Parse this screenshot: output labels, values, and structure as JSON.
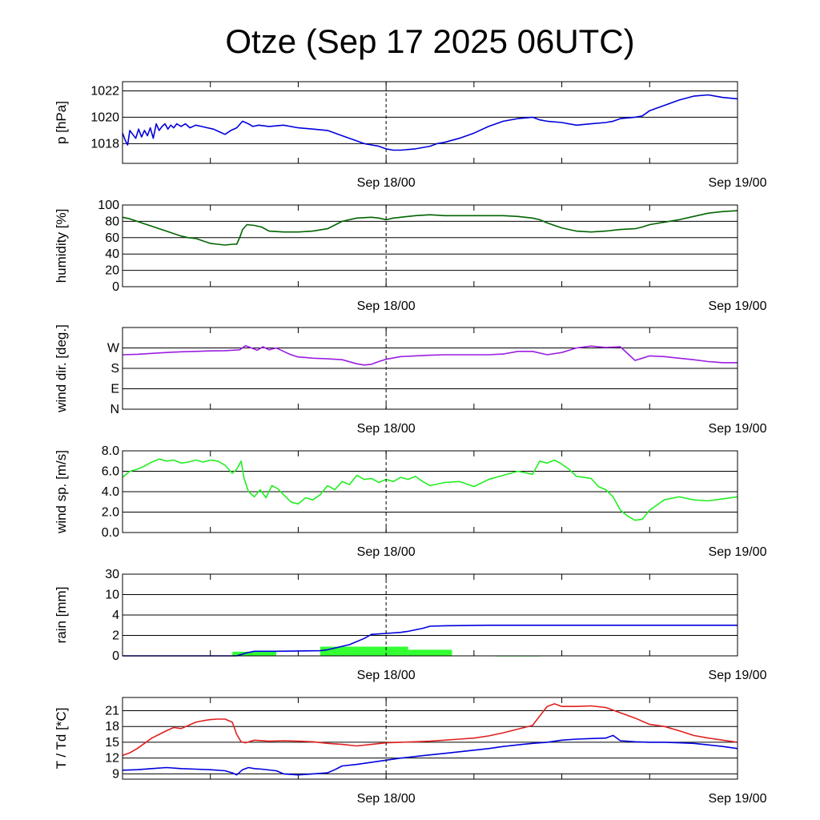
{
  "title": "Otze (Sep 17 2025 06UTC)",
  "colors": {
    "pressure": "#0000dd",
    "humidity": "#006400",
    "wind_dir": "#9a1ee0",
    "wind_dir_alt": "#6060ff",
    "wind_speed": "#22ee22",
    "rain_bar": "#33ff33",
    "rain_acc": "#0000dd",
    "temperature": "#e02020",
    "dewpoint": "#0000dd",
    "grid": "#000000",
    "now_line": "#000000"
  },
  "chart_data": [
    {
      "type": "line",
      "id": "pressure",
      "ylabel": "p [hPa]",
      "x_range_h": [
        0,
        42
      ],
      "x_tick_labels": [
        {
          "h": 18,
          "label": "Sep 18/00"
        },
        {
          "h": 42,
          "label": "Sep 19/00"
        }
      ],
      "ylim": [
        1016.5,
        1022.7
      ],
      "y_ticks": [
        {
          "v": 1018,
          "label": "1018"
        },
        {
          "v": 1020,
          "label": "1020"
        },
        {
          "v": 1022,
          "label": "1022"
        }
      ],
      "series": [
        {
          "color_key": "pressure",
          "x": [
            0,
            0.2,
            0.35,
            0.5,
            0.7,
            0.9,
            1.1,
            1.3,
            1.5,
            1.7,
            1.9,
            2.1,
            2.3,
            2.5,
            2.7,
            2.9,
            3.1,
            3.3,
            3.5,
            3.7,
            4.0,
            4.3,
            4.6,
            5.0,
            5.4,
            5.8,
            6.2,
            6.6,
            7.0,
            7.4,
            7.8,
            8.2,
            8.4,
            8.6,
            8.9,
            9.3,
            10,
            11,
            12,
            13,
            14,
            15,
            16,
            16.5,
            17,
            17.5,
            18,
            18.5,
            19,
            20,
            21,
            21.5,
            22,
            23,
            24,
            25,
            26,
            27,
            28,
            28.5,
            29,
            30,
            31,
            32,
            33,
            33.5,
            34,
            35,
            35.5,
            36,
            37,
            38,
            39,
            40,
            41,
            42
          ],
          "y": [
            1018.8,
            1018.2,
            1017.9,
            1019.0,
            1018.7,
            1018.4,
            1019.1,
            1018.5,
            1019.0,
            1018.6,
            1019.2,
            1018.4,
            1019.5,
            1019.0,
            1019.3,
            1019.5,
            1019.1,
            1019.4,
            1019.2,
            1019.5,
            1019.3,
            1019.5,
            1019.2,
            1019.4,
            1019.3,
            1019.2,
            1019.1,
            1018.9,
            1018.7,
            1019.0,
            1019.2,
            1019.7,
            1019.6,
            1019.5,
            1019.3,
            1019.4,
            1019.3,
            1019.4,
            1019.2,
            1019.1,
            1019.0,
            1018.6,
            1018.2,
            1018.0,
            1017.9,
            1017.8,
            1017.6,
            1017.5,
            1017.5,
            1017.6,
            1017.8,
            1018.0,
            1018.1,
            1018.4,
            1018.8,
            1019.3,
            1019.7,
            1019.9,
            1020.0,
            1019.8,
            1019.7,
            1019.6,
            1019.4,
            1019.5,
            1019.6,
            1019.7,
            1019.9,
            1020.0,
            1020.1,
            1020.5,
            1020.9,
            1021.3,
            1021.6,
            1021.7,
            1021.5,
            1021.4
          ]
        }
      ]
    },
    {
      "type": "line",
      "id": "humidity",
      "ylabel": "humidity [%]",
      "x_range_h": [
        0,
        42
      ],
      "x_tick_labels": [
        {
          "h": 18,
          "label": "Sep 18/00"
        },
        {
          "h": 42,
          "label": "Sep 19/00"
        }
      ],
      "ylim": [
        0,
        100
      ],
      "y_ticks": [
        {
          "v": 0,
          "label": "0"
        },
        {
          "v": 20,
          "label": "20"
        },
        {
          "v": 40,
          "label": "40"
        },
        {
          "v": 60,
          "label": "60"
        },
        {
          "v": 80,
          "label": "80"
        },
        {
          "v": 100,
          "label": "100"
        }
      ],
      "series": [
        {
          "color_key": "humidity",
          "x": [
            0,
            0.5,
            1,
            1.5,
            2,
            2.5,
            3,
            3.5,
            4,
            4.5,
            5,
            5.5,
            6,
            6.5,
            7,
            7.5,
            7.8,
            8.0,
            8.2,
            8.5,
            9,
            9.5,
            10,
            11,
            12,
            13,
            14,
            15,
            16,
            17,
            17.5,
            18,
            18.5,
            19,
            19.5,
            20,
            21,
            22,
            23,
            24,
            25,
            26,
            27,
            28,
            28.5,
            29,
            30,
            31,
            32,
            33,
            34,
            35,
            35.5,
            36,
            37,
            38,
            39,
            40,
            41,
            42
          ],
          "y": [
            85,
            83,
            80,
            77,
            74,
            71,
            68,
            65,
            62,
            60,
            59,
            56,
            53,
            52,
            51,
            52,
            52,
            60,
            70,
            76,
            75,
            73,
            68,
            67,
            67,
            68,
            71,
            80,
            84,
            85,
            84,
            82,
            84,
            85,
            86,
            87,
            88,
            87,
            87,
            87,
            87,
            87,
            86,
            84,
            82,
            78,
            72,
            68,
            67,
            68,
            70,
            71,
            73,
            76,
            79,
            82,
            86,
            90,
            92,
            93
          ]
        }
      ]
    },
    {
      "type": "line",
      "id": "wind_direction",
      "ylabel": "wind dir. [deg.]",
      "x_range_h": [
        0,
        42
      ],
      "x_tick_labels": [
        {
          "h": 18,
          "label": "Sep 18/00"
        },
        {
          "h": 42,
          "label": "Sep 19/00"
        }
      ],
      "ylim": [
        0,
        360
      ],
      "y_ticks": [
        {
          "v": 0,
          "label": "N"
        },
        {
          "v": 90,
          "label": "E"
        },
        {
          "v": 180,
          "label": "S"
        },
        {
          "v": 270,
          "label": "W"
        }
      ],
      "series": [
        {
          "color_key": "wind_dir",
          "x": [
            0,
            1,
            2,
            3,
            4,
            5,
            6,
            7,
            8,
            8.4,
            8.8,
            9.2,
            9.6,
            10,
            10.5,
            11,
            11.5,
            12,
            12.5,
            13,
            14,
            15,
            16,
            16.5,
            17,
            17.5,
            18,
            19,
            20,
            21,
            22,
            23,
            24,
            25,
            26,
            27,
            28,
            29,
            30,
            31,
            32,
            33,
            34,
            34.5,
            35,
            35.5,
            36,
            37,
            38,
            39,
            40,
            41,
            42
          ],
          "y": [
            240,
            242,
            246,
            250,
            253,
            255,
            257,
            258,
            262,
            280,
            270,
            260,
            275,
            262,
            270,
            255,
            240,
            230,
            228,
            225,
            222,
            218,
            200,
            195,
            198,
            210,
            220,
            232,
            235,
            238,
            240,
            240,
            240,
            240,
            243,
            255,
            255,
            240,
            250,
            270,
            278,
            272,
            275,
            245,
            215,
            225,
            235,
            232,
            225,
            218,
            210,
            205,
            205
          ]
        }
      ]
    },
    {
      "type": "line",
      "id": "wind_speed",
      "ylabel": "wind sp. [m/s]",
      "x_range_h": [
        0,
        42
      ],
      "x_tick_labels": [
        {
          "h": 18,
          "label": "Sep 18/00"
        },
        {
          "h": 42,
          "label": "Sep 19/00"
        }
      ],
      "ylim": [
        0,
        8.0
      ],
      "y_ticks": [
        {
          "v": 0,
          "label": "0.0"
        },
        {
          "v": 2,
          "label": "2.0"
        },
        {
          "v": 4,
          "label": "4.0"
        },
        {
          "v": 6,
          "label": "6.0"
        },
        {
          "v": 8,
          "label": "8.0"
        }
      ],
      "series": [
        {
          "color_key": "wind_speed",
          "x": [
            0,
            0.5,
            1,
            1.5,
            2,
            2.5,
            3,
            3.5,
            4,
            4.5,
            5,
            5.5,
            6,
            6.5,
            7,
            7.5,
            7.8,
            8.1,
            8.3,
            8.6,
            9,
            9.4,
            9.8,
            10.2,
            10.6,
            11,
            11.5,
            12,
            12.5,
            13,
            13.5,
            14,
            14.5,
            15,
            15.5,
            16,
            16.5,
            17,
            17.5,
            18,
            18.5,
            19,
            19.5,
            20,
            20.5,
            21,
            22,
            23,
            24,
            25,
            26,
            27,
            28,
            28.5,
            29,
            29.5,
            30,
            30.5,
            31,
            31.5,
            32,
            32.5,
            33,
            33.5,
            34,
            34.5,
            35,
            35.5,
            36,
            37,
            38,
            39,
            40,
            41,
            42
          ],
          "y": [
            5.4,
            6.0,
            6.2,
            6.5,
            6.9,
            7.2,
            7.0,
            7.1,
            6.8,
            6.9,
            7.1,
            6.9,
            7.1,
            7.0,
            6.6,
            5.8,
            6.2,
            7.0,
            5.3,
            4.0,
            3.5,
            4.2,
            3.4,
            4.6,
            4.3,
            3.7,
            3.0,
            2.8,
            3.4,
            3.2,
            3.7,
            4.6,
            4.2,
            5.0,
            4.7,
            5.6,
            5.2,
            5.3,
            4.9,
            5.2,
            5.0,
            5.4,
            5.2,
            5.5,
            5.0,
            4.6,
            4.9,
            5.0,
            4.5,
            5.2,
            5.6,
            6.0,
            5.7,
            7.0,
            6.8,
            7.1,
            6.7,
            6.2,
            5.5,
            5.4,
            5.3,
            4.5,
            4.2,
            3.5,
            2.2,
            1.6,
            1.2,
            1.3,
            2.2,
            3.2,
            3.5,
            3.2,
            3.1,
            3.3,
            3.5
          ]
        }
      ]
    },
    {
      "type": "bar+line",
      "id": "rain",
      "ylabel": "rain [mm]",
      "x_range_h": [
        0,
        42
      ],
      "x_tick_labels": [
        {
          "h": 18,
          "label": "Sep 18/00"
        },
        {
          "h": 42,
          "label": "Sep 19/00"
        }
      ],
      "y_scale": "piecewise",
      "y_ticks": [
        {
          "v": 0,
          "label": "0"
        },
        {
          "v": 2,
          "label": "2"
        },
        {
          "v": 4,
          "label": "4"
        },
        {
          "v": 10,
          "label": "10"
        },
        {
          "v": 30,
          "label": "30"
        }
      ],
      "bars": [
        {
          "x0": 7.5,
          "x1": 10.5,
          "value": 0.4
        },
        {
          "x0": 13.5,
          "x1": 19.5,
          "value": 0.9
        },
        {
          "x0": 19.5,
          "x1": 22.5,
          "value": 0.6
        },
        {
          "x0": 25.5,
          "x1": 28.5,
          "value": 0.02
        }
      ],
      "series": [
        {
          "name": "accumulated",
          "color_key": "rain_acc",
          "x": [
            0,
            7.8,
            8.5,
            9.0,
            10.5,
            13.5,
            14.0,
            15.5,
            16.5,
            17.0,
            18.0,
            19.0,
            19.5,
            20.5,
            21.0,
            22.0,
            25.0,
            28.0,
            30.0,
            34.0,
            38.0,
            42.0
          ],
          "y": [
            0,
            0,
            0.3,
            0.45,
            0.45,
            0.5,
            0.6,
            1.1,
            1.7,
            2.1,
            2.2,
            2.3,
            2.4,
            2.7,
            2.9,
            2.95,
            3.0,
            3.0,
            3.0,
            3.0,
            3.0,
            3.0
          ]
        }
      ]
    },
    {
      "type": "line",
      "id": "temperature",
      "ylabel": "T / Td [*C]",
      "x_range_h": [
        0,
        42
      ],
      "x_tick_labels": [
        {
          "h": 18,
          "label": "Sep 18/00"
        },
        {
          "h": 42,
          "label": "Sep 19/00"
        }
      ],
      "ylim": [
        8,
        23.5
      ],
      "y_ticks": [
        {
          "v": 9,
          "label": "9"
        },
        {
          "v": 12,
          "label": "12"
        },
        {
          "v": 15,
          "label": "15"
        },
        {
          "v": 18,
          "label": "18"
        },
        {
          "v": 21,
          "label": "21"
        }
      ],
      "series": [
        {
          "color_key": "temperature",
          "x": [
            0,
            0.5,
            1,
            1.5,
            2,
            2.5,
            3,
            3.5,
            4,
            4.5,
            5,
            5.5,
            6,
            6.5,
            7,
            7.5,
            7.8,
            8.1,
            8.4,
            9,
            10,
            11,
            12,
            13,
            14,
            15,
            16,
            17,
            18,
            19,
            20,
            21,
            22,
            23,
            24,
            25,
            26,
            27,
            28,
            28.5,
            29,
            29.5,
            30,
            31,
            32,
            33,
            34,
            35,
            36,
            37,
            38,
            39,
            40,
            41,
            42
          ],
          "y": [
            12.5,
            13.0,
            13.8,
            14.8,
            15.8,
            16.5,
            17.2,
            17.8,
            17.6,
            18.2,
            18.8,
            19.1,
            19.3,
            19.4,
            19.4,
            18.8,
            16.5,
            15.1,
            14.9,
            15.4,
            15.2,
            15.3,
            15.2,
            15.1,
            14.8,
            14.6,
            14.3,
            14.6,
            14.9,
            15.0,
            15.1,
            15.2,
            15.4,
            15.6,
            15.8,
            16.2,
            16.8,
            17.5,
            18.2,
            20.0,
            21.8,
            22.3,
            21.8,
            21.8,
            21.9,
            21.6,
            20.6,
            19.6,
            18.4,
            18.0,
            17.2,
            16.3,
            15.8,
            15.4,
            15.0
          ]
        },
        {
          "color_key": "dewpoint",
          "x": [
            0,
            1,
            2,
            3,
            4,
            5,
            6,
            7,
            7.5,
            7.8,
            8.2,
            8.6,
            9.0,
            9.5,
            10.5,
            11,
            12,
            12.5,
            13,
            13.5,
            14,
            14.5,
            15,
            16,
            17,
            18,
            19,
            20,
            21,
            22,
            23,
            24,
            25,
            26,
            27,
            28,
            29,
            30,
            31,
            32,
            33,
            33.5,
            34,
            35,
            36,
            37,
            38,
            39,
            40,
            41,
            42
          ],
          "y": [
            9.7,
            9.8,
            10.0,
            10.2,
            10.0,
            9.9,
            9.8,
            9.6,
            9.2,
            8.8,
            9.8,
            10.2,
            10.0,
            9.9,
            9.6,
            9.0,
            8.8,
            8.9,
            9.0,
            9.1,
            9.2,
            9.8,
            10.5,
            10.8,
            11.2,
            11.6,
            12.0,
            12.3,
            12.6,
            12.9,
            13.2,
            13.5,
            13.8,
            14.2,
            14.5,
            14.8,
            15.0,
            15.4,
            15.6,
            15.7,
            15.8,
            16.3,
            15.3,
            15.1,
            15.0,
            15.0,
            14.9,
            14.8,
            14.5,
            14.2,
            13.8
          ]
        }
      ]
    }
  ]
}
